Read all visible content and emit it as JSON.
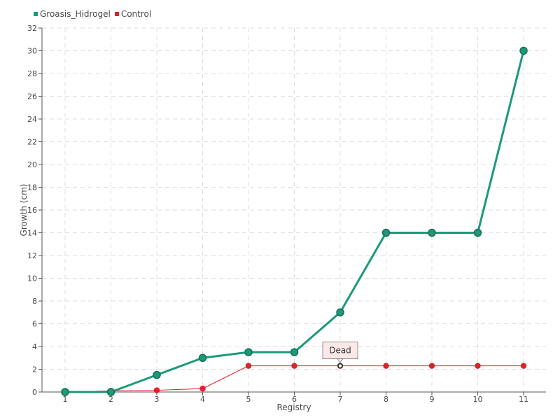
{
  "chart_data": {
    "type": "line",
    "xlabel": "Registry",
    "ylabel": "Growth (cm)",
    "categories": [
      "1",
      "2",
      "3",
      "4",
      "5",
      "6",
      "7",
      "8",
      "9",
      "10",
      "11"
    ],
    "ylim": [
      0,
      32
    ],
    "yticks": [
      0,
      2,
      4,
      6,
      8,
      10,
      12,
      14,
      16,
      18,
      20,
      22,
      24,
      26,
      28,
      30,
      32
    ],
    "grid": true,
    "legend_position": "top-left",
    "series": [
      {
        "name": "Groasis_Hidrogel",
        "color": "#1a9a7a",
        "values": [
          0,
          0,
          1.5,
          3,
          3.5,
          3.5,
          7,
          14,
          14,
          14,
          30
        ]
      },
      {
        "name": "Control",
        "color": "#e0202a",
        "values": [
          0,
          0.1,
          0.15,
          0.3,
          2.3,
          2.3,
          2.3,
          2.3,
          2.3,
          2.3,
          2.3
        ]
      }
    ],
    "annotations": [
      {
        "text": "Dead",
        "series": "Control",
        "category": "7"
      }
    ]
  }
}
